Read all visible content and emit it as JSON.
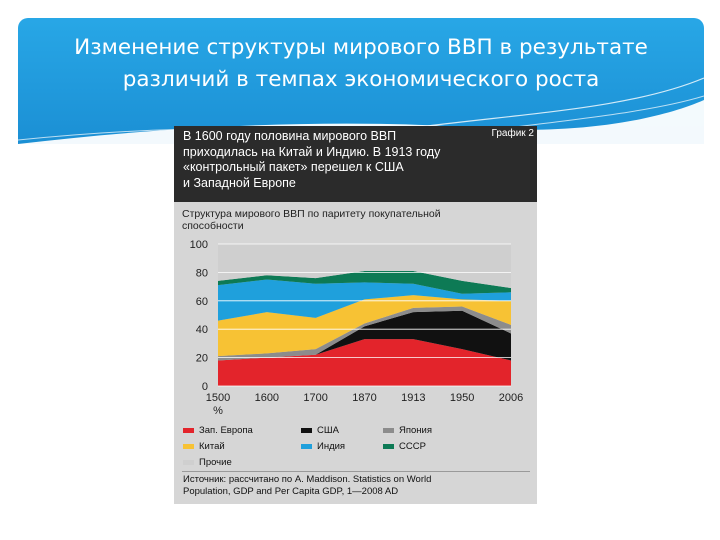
{
  "slide": {
    "title_line1": "Изменение структуры мирового ВВП в результате",
    "title_line2": "различий в темпах экономического роста",
    "header_color": "#1f97db"
  },
  "figure": {
    "tag": "График 2",
    "caption_lines": [
      "В 1600 году половина мирового ВВП",
      "приходилась на Китай и Индию. В 1913 году",
      "«контрольный пакет» перешел к США",
      "и Западной Европе"
    ],
    "chart_title_line1": "Структура мирового ВВП по паритету покупательной",
    "chart_title_line2": "способности",
    "source_line1": "Источник: рассчитано по A. Maddison. Statistics on World",
    "source_line2": "Population, GDP and Per Capita GDP, 1—2008 AD"
  },
  "chart_data": {
    "type": "area",
    "stacked": true,
    "unit": "%",
    "categories": [
      "1500",
      "1600",
      "1700",
      "1870",
      "1913",
      "1950",
      "2006"
    ],
    "yticks": [
      0,
      20,
      40,
      60,
      80,
      100
    ],
    "ylim": [
      0,
      100
    ],
    "grid": true,
    "series": [
      {
        "name": "Зап. Европа",
        "color": "#e3242b",
        "values": [
          18,
          20,
          22,
          33,
          33,
          26,
          18
        ]
      },
      {
        "name": "США",
        "color": "#111111",
        "values": [
          0,
          0,
          0,
          9,
          19,
          27,
          19
        ]
      },
      {
        "name": "Япония",
        "color": "#8c8c8c",
        "values": [
          3,
          3,
          4,
          2,
          3,
          3,
          6
        ]
      },
      {
        "name": "Китай",
        "color": "#f7c234",
        "values": [
          25,
          29,
          22,
          17,
          9,
          5,
          17
        ]
      },
      {
        "name": "Индия",
        "color": "#1fa0dc",
        "values": [
          25,
          23,
          24,
          12,
          8,
          4,
          6
        ]
      },
      {
        "name": "СССР",
        "color": "#0d7a55",
        "values": [
          3,
          3,
          4,
          8,
          9,
          9,
          3
        ]
      },
      {
        "name": "Прочие",
        "color": "#cfcfcf",
        "values": [
          26,
          22,
          24,
          19,
          19,
          26,
          31
        ]
      }
    ]
  }
}
